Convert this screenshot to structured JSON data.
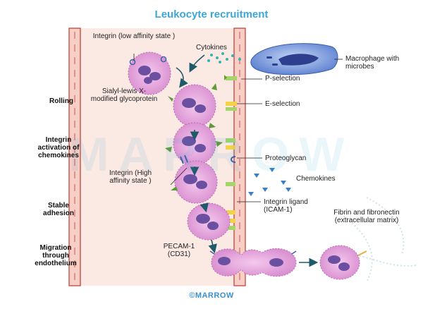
{
  "title": "Leukocyte recruitment",
  "watermark": "MARROW",
  "footer": "©MARROW",
  "stages": {
    "rolling": "Rolling",
    "integrin_activation": "Integrin activation of chemokines",
    "stable_adhesion": "Stable adhesion",
    "migration": "Migration through endothelium"
  },
  "labels": {
    "integrin_low": "Integrin (low affinity state )",
    "cytokines": "Cytokines",
    "macrophage": "Macrophage with microbes",
    "p_selection": "P-selection",
    "sialyl": "Sialyl-lewis X-modified glycoprotein",
    "e_selection": "E-selection",
    "proteoglycan": "Proteoglycan",
    "integrin_high": "Integrin (High affinity state )",
    "chemokines": "Chemokines",
    "integrin_ligand": "Integrin ligand (ICAM-1)",
    "fibrin": "Fibrin and fibronectin (extracellular matrix)",
    "pecam": "PECAM-1 (CD31)"
  },
  "colors": {
    "title": "#3aa7d8",
    "vessel_wall": "#c0392b",
    "vessel_fill": "#fbe9e4",
    "leukocyte": "#e6a6dc",
    "nucleus": "#6b4fa0",
    "macrophage": "#6f8fd8",
    "selectin": "#f1d24a",
    "integrin": "#3a5fa8",
    "arrow": "#1f5a6b"
  }
}
